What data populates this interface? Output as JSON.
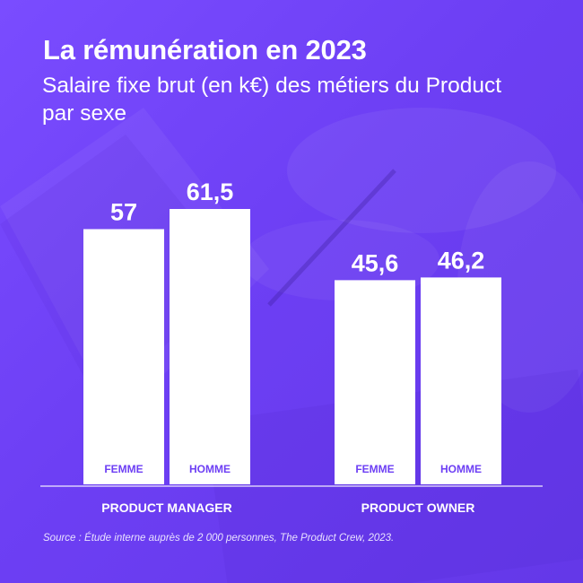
{
  "title": "La rémunération en 2023",
  "subtitle": "Salaire fixe brut (en k€) des métiers du Product par sexe",
  "source": "Source : Étude interne auprès de 2 000 personnes, The Product Crew, 2023.",
  "colors": {
    "background": "#6d3ff4",
    "bar": "#ffffff",
    "bar_label": "#6d3ff4",
    "text": "#ffffff"
  },
  "chart_data": {
    "type": "bar",
    "title": "La rémunération en 2023",
    "subtitle": "Salaire fixe brut (en k€) des métiers du Product par sexe",
    "groups": [
      {
        "name": "PRODUCT MANAGER",
        "bars": [
          {
            "label": "FEMME",
            "value": 57,
            "value_text": "57"
          },
          {
            "label": "HOMME",
            "value": 61.5,
            "value_text": "61,5"
          }
        ]
      },
      {
        "name": "PRODUCT OWNER",
        "bars": [
          {
            "label": "FEMME",
            "value": 45.6,
            "value_text": "45,6"
          },
          {
            "label": "HOMME",
            "value": 46.2,
            "value_text": "46,2"
          }
        ]
      }
    ],
    "ylim": [
      0,
      61.5
    ],
    "grid": false,
    "legend": "none"
  }
}
